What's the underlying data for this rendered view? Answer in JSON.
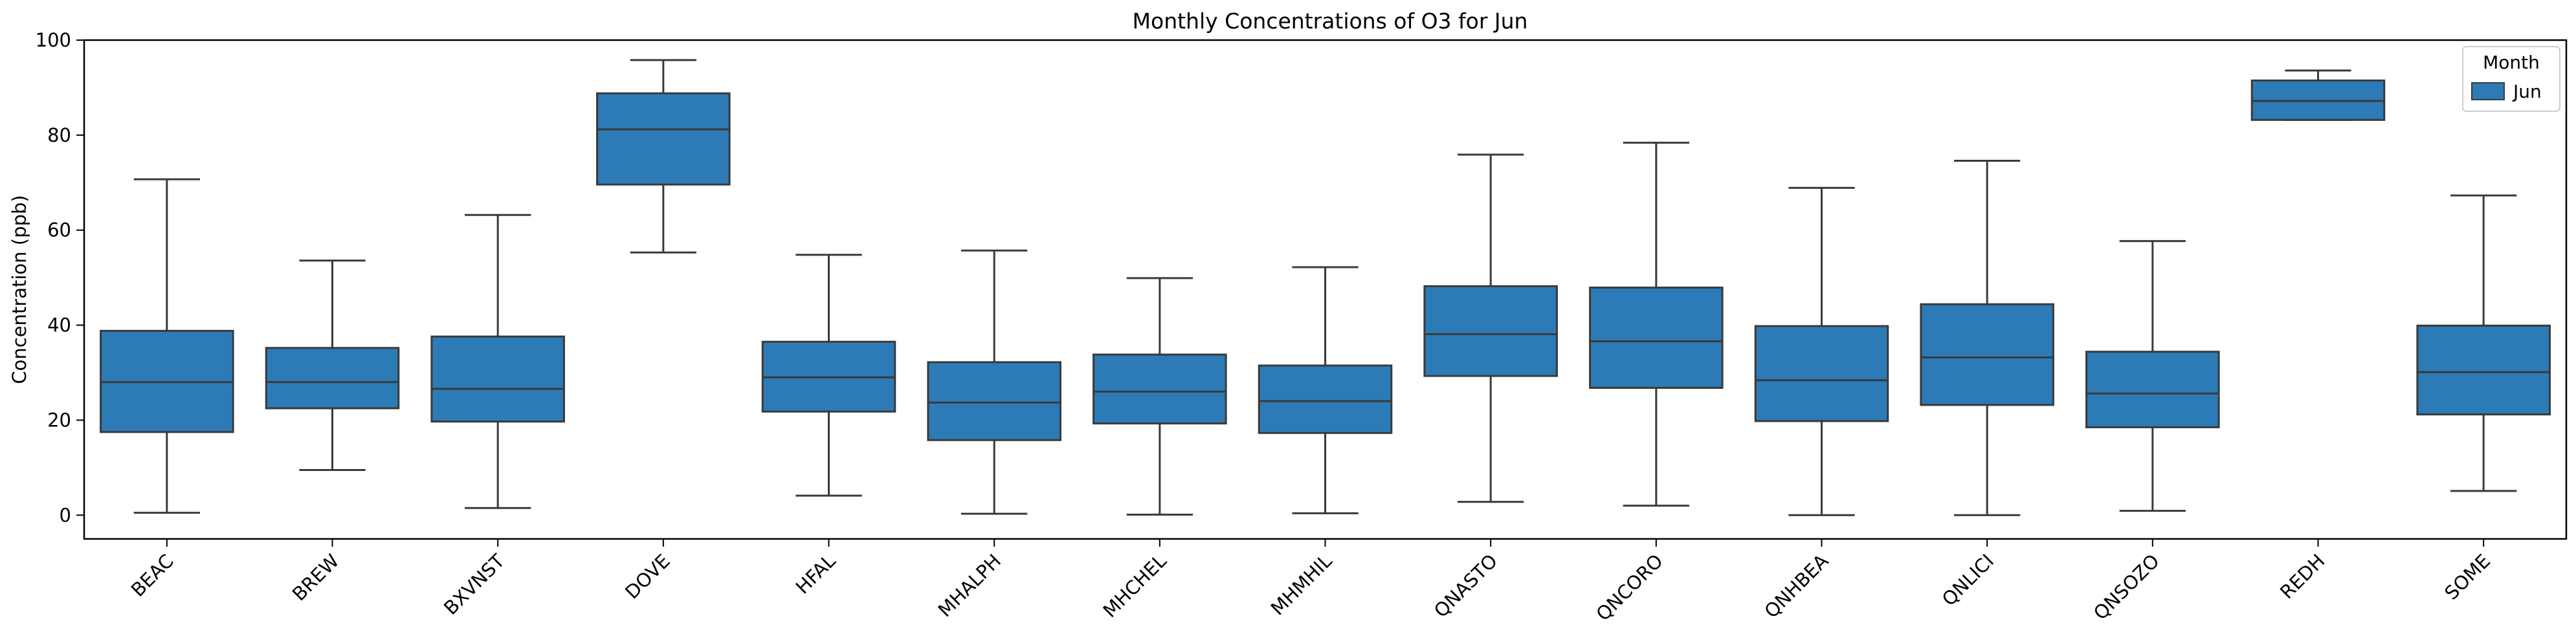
{
  "chart_data": {
    "type": "box",
    "title": "Monthly Concentrations of O3 for Jun",
    "xlabel": "",
    "ylabel": "Concentration (ppb)",
    "ylim": [
      -5,
      100
    ],
    "yticks": [
      0,
      20,
      40,
      60,
      80,
      100
    ],
    "legend": {
      "title": "Month",
      "placement": "top-right",
      "entries": [
        "Jun"
      ]
    },
    "colors": {
      "box_fill": "#2c7bb6",
      "box_edge": "#3a3a3a",
      "axis": "#000000"
    },
    "categories": [
      "BEAC",
      "BREW",
      "BXVNST",
      "DOVE",
      "HFAL",
      "MHALPH",
      "MHCHEL",
      "MHMHIL",
      "QNASTO",
      "QNCORO",
      "QNHBEA",
      "QNLICI",
      "QNSOZO",
      "REDH",
      "SOME"
    ],
    "series": [
      {
        "name": "Jun",
        "boxes": [
          {
            "whisker_low": 0.5,
            "q1": 17.5,
            "median": 28.0,
            "q3": 38.8,
            "whisker_high": 70.7
          },
          {
            "whisker_low": 9.5,
            "q1": 22.5,
            "median": 28.0,
            "q3": 35.2,
            "whisker_high": 53.6
          },
          {
            "whisker_low": 1.5,
            "q1": 19.7,
            "median": 26.6,
            "q3": 37.6,
            "whisker_high": 63.2
          },
          {
            "whisker_low": 55.3,
            "q1": 69.6,
            "median": 81.2,
            "q3": 88.8,
            "whisker_high": 95.8
          },
          {
            "whisker_low": 4.1,
            "q1": 21.8,
            "median": 29.0,
            "q3": 36.5,
            "whisker_high": 54.8
          },
          {
            "whisker_low": 0.3,
            "q1": 15.8,
            "median": 23.7,
            "q3": 32.2,
            "whisker_high": 55.7
          },
          {
            "whisker_low": 0.1,
            "q1": 19.3,
            "median": 26.0,
            "q3": 33.8,
            "whisker_high": 49.9
          },
          {
            "whisker_low": 0.4,
            "q1": 17.3,
            "median": 24.0,
            "q3": 31.5,
            "whisker_high": 52.2
          },
          {
            "whisker_low": 2.8,
            "q1": 29.3,
            "median": 38.1,
            "q3": 48.2,
            "whisker_high": 75.9
          },
          {
            "whisker_low": 2.0,
            "q1": 26.8,
            "median": 36.6,
            "q3": 47.9,
            "whisker_high": 78.4
          },
          {
            "whisker_low": 0.0,
            "q1": 19.8,
            "median": 28.4,
            "q3": 39.8,
            "whisker_high": 68.9
          },
          {
            "whisker_low": 0.0,
            "q1": 23.2,
            "median": 33.2,
            "q3": 44.4,
            "whisker_high": 74.6
          },
          {
            "whisker_low": 0.9,
            "q1": 18.5,
            "median": 25.6,
            "q3": 34.4,
            "whisker_high": 57.7
          },
          {
            "whisker_low": 83.2,
            "q1": 83.2,
            "median": 87.2,
            "q3": 91.5,
            "whisker_high": 93.6
          },
          {
            "whisker_low": 5.1,
            "q1": 21.2,
            "median": 30.1,
            "q3": 39.9,
            "whisker_high": 67.3
          }
        ]
      }
    ]
  }
}
